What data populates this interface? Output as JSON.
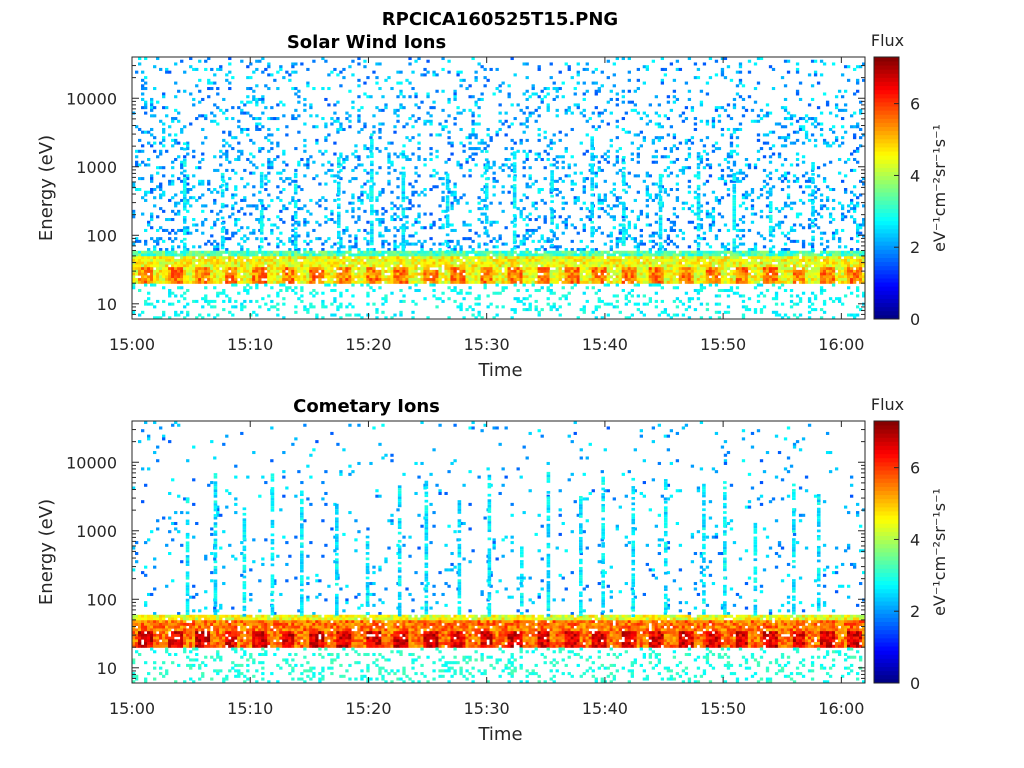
{
  "figure_title": "RPCICA160525T15.PNG",
  "chart_data": [
    {
      "type": "heatmap",
      "title": "Solar Wind Ions",
      "xlabel": "Time",
      "ylabel": "Energy (eV)",
      "x_ticks": [
        "15:00",
        "15:10",
        "15:20",
        "15:30",
        "15:40",
        "15:50",
        "16:00"
      ],
      "x_range": [
        "15:00",
        "16:02"
      ],
      "y_scale": "log",
      "y_ticks": [
        10,
        100,
        1000,
        10000
      ],
      "y_tick_labels": [
        "10",
        "100",
        "1000",
        "10000"
      ],
      "y_range": [
        6,
        40000
      ],
      "colorbar": {
        "title": "Flux",
        "label": "eV⁻¹cm⁻²sr⁻¹s⁻¹",
        "ticks": [
          0,
          2,
          4,
          6
        ],
        "range": [
          0,
          7.3
        ],
        "colormap": "jet"
      },
      "features": {
        "main_band_eV": [
          20,
          60
        ],
        "main_band_level": 4.5,
        "low_energy_specks_eV": [
          6,
          20
        ],
        "low_energy_level": 2.8,
        "scatter_level_range": [
          1.5,
          2.8
        ],
        "vertical_streak_count": 18,
        "pattern_period_minutes": 2.4
      }
    },
    {
      "type": "heatmap",
      "title": "Cometary Ions",
      "xlabel": "Time",
      "ylabel": "Energy (eV)",
      "x_ticks": [
        "15:00",
        "15:10",
        "15:20",
        "15:30",
        "15:40",
        "15:50",
        "16:00"
      ],
      "x_range": [
        "15:00",
        "16:02"
      ],
      "y_scale": "log",
      "y_ticks": [
        10,
        100,
        1000,
        10000
      ],
      "y_tick_labels": [
        "10",
        "100",
        "1000",
        "10000"
      ],
      "y_range": [
        6,
        40000
      ],
      "colorbar": {
        "title": "Flux",
        "label": "eV⁻¹cm⁻²sr⁻¹s⁻¹",
        "ticks": [
          0,
          2,
          4,
          6
        ],
        "range": [
          0,
          7.3
        ],
        "colormap": "jet"
      },
      "features": {
        "main_band_eV": [
          20,
          60
        ],
        "main_band_level": 5.6,
        "low_energy_specks_eV": [
          6,
          20
        ],
        "low_energy_level": 3.0,
        "scatter_level_range": [
          1.5,
          2.8
        ],
        "vertical_streak_count": 22,
        "pattern_period_minutes": 2.4
      }
    }
  ]
}
